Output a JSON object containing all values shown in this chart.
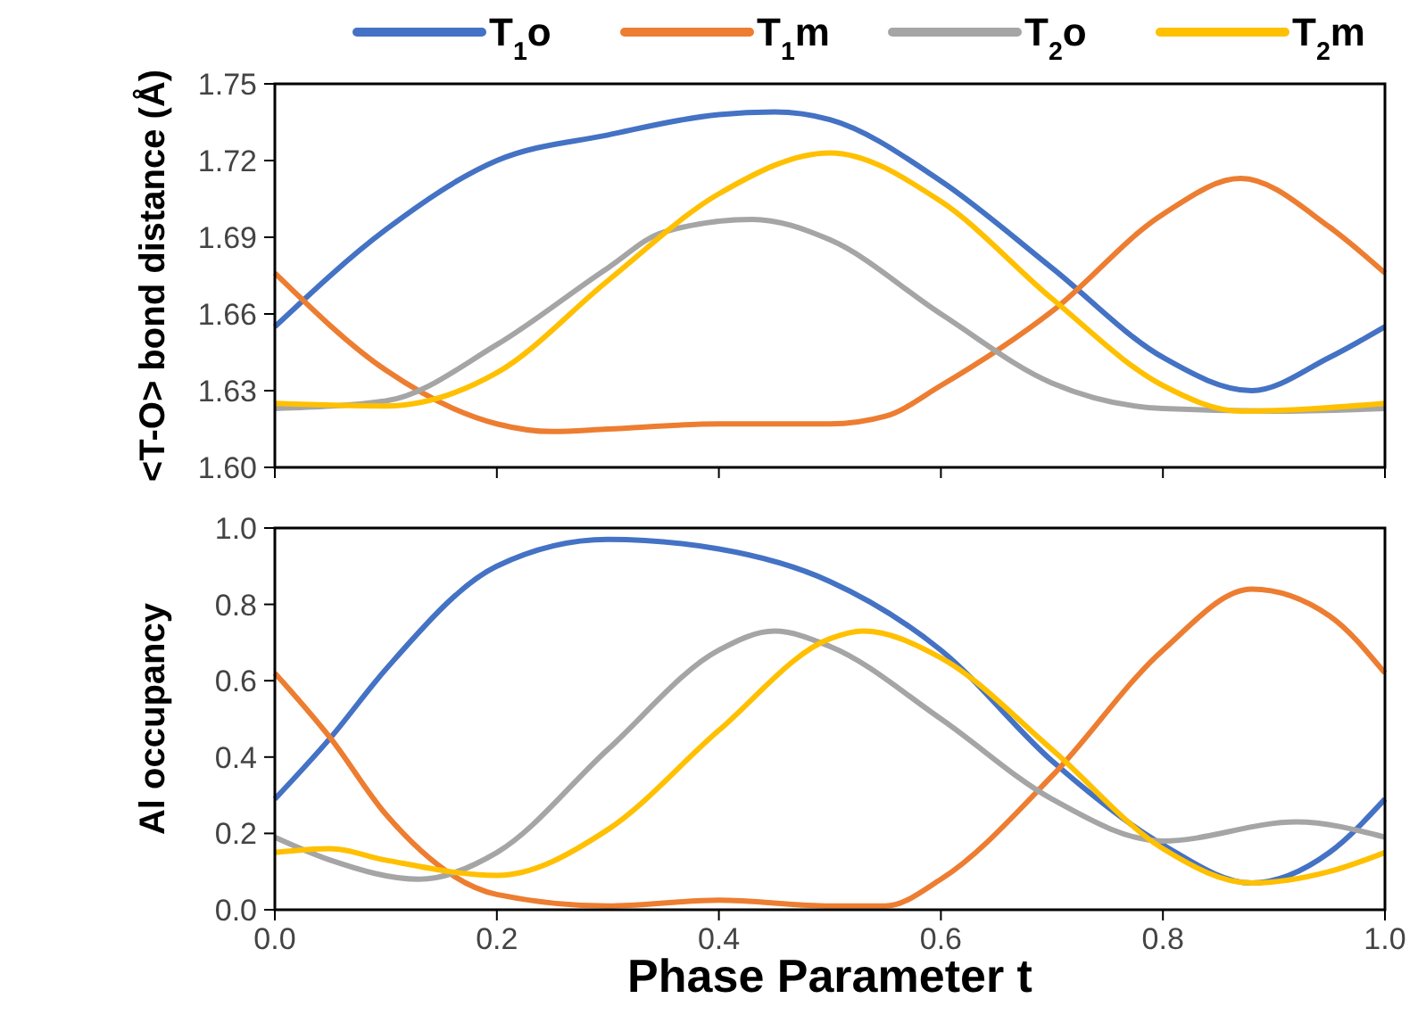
{
  "chart_data": [
    {
      "type": "line",
      "ylabel": "<T-O> bond distance (Å)",
      "legend": "top",
      "tick_labels": "y",
      "grid": false,
      "marker": "none",
      "line_style": "solid",
      "xlim": [
        0,
        1
      ],
      "xticks": [
        0,
        0.2,
        0.4,
        0.6,
        0.8,
        1
      ],
      "ylim": [
        1.6,
        1.75
      ],
      "yticks": [
        {
          "value": 1.6,
          "label": "1.60"
        },
        {
          "value": 1.63,
          "label": "1.63"
        },
        {
          "value": 1.66,
          "label": "1.66"
        },
        {
          "value": 1.69,
          "label": "1.69"
        },
        {
          "value": 1.72,
          "label": "1.72"
        },
        {
          "value": 1.75,
          "label": "1.75"
        }
      ],
      "series": [
        {
          "name": "T$_{1}$o",
          "color": "#4472c4",
          "x": [
            0,
            0.1,
            0.2,
            0.3,
            0.4,
            0.45,
            0.5,
            0.6,
            0.7,
            0.8,
            0.88,
            0.95,
            1
          ],
          "values": [
            1.655,
            1.693,
            1.72,
            1.73,
            1.738,
            1.739,
            1.736,
            1.712,
            1.678,
            1.643,
            1.63,
            1.643,
            1.655
          ]
        },
        {
          "name": "T$_{1}$m",
          "color": "#ed7d31",
          "x": [
            0,
            0.1,
            0.2,
            0.25,
            0.3,
            0.4,
            0.5,
            0.55,
            0.6,
            0.7,
            0.8,
            0.87,
            0.95,
            1
          ],
          "values": [
            1.676,
            1.638,
            1.617,
            1.614,
            1.615,
            1.617,
            1.617,
            1.62,
            1.632,
            1.661,
            1.699,
            1.713,
            1.694,
            1.676
          ]
        },
        {
          "name": "T$_{2}$o",
          "color": "#a5a5a5",
          "x": [
            0,
            0.1,
            0.2,
            0.3,
            0.35,
            0.43,
            0.5,
            0.6,
            0.7,
            0.8,
            0.9,
            1
          ],
          "values": [
            1.623,
            1.626,
            1.648,
            1.678,
            1.692,
            1.697,
            1.689,
            1.66,
            1.633,
            1.623,
            1.622,
            1.623
          ]
        },
        {
          "name": "T$_{2}$m",
          "color": "#ffc000",
          "x": [
            0,
            0.1,
            0.2,
            0.3,
            0.4,
            0.5,
            0.6,
            0.7,
            0.8,
            0.87,
            1
          ],
          "values": [
            1.625,
            1.624,
            1.637,
            1.673,
            1.707,
            1.723,
            1.704,
            1.666,
            1.632,
            1.622,
            1.625
          ]
        }
      ]
    },
    {
      "type": "line",
      "ylabel": "Al occupancy",
      "xlabel": "Phase Parameter t",
      "grid": false,
      "marker": "none",
      "line_style": "solid",
      "xlim": [
        0,
        1
      ],
      "xticks": [
        {
          "value": 0,
          "label": "0.0"
        },
        {
          "value": 0.2,
          "label": "0.2"
        },
        {
          "value": 0.4,
          "label": "0.4"
        },
        {
          "value": 0.6,
          "label": "0.6"
        },
        {
          "value": 0.8,
          "label": "0.8"
        },
        {
          "value": 1,
          "label": "1.0"
        }
      ],
      "ylim": [
        0,
        1
      ],
      "yticks": [
        {
          "value": 0,
          "label": "0.0"
        },
        {
          "value": 0.2,
          "label": "0.2"
        },
        {
          "value": 0.4,
          "label": "0.4"
        },
        {
          "value": 0.6,
          "label": "0.6"
        },
        {
          "value": 0.8,
          "label": "0.8"
        },
        {
          "value": 1,
          "label": "1.0"
        }
      ],
      "series": [
        {
          "color": "#4472c4",
          "x": [
            0,
            0.05,
            0.1,
            0.2,
            0.3,
            0.4,
            0.5,
            0.6,
            0.7,
            0.8,
            0.88,
            0.95,
            1
          ],
          "values": [
            0.29,
            0.45,
            0.63,
            0.9,
            0.97,
            0.945,
            0.86,
            0.68,
            0.39,
            0.17,
            0.07,
            0.15,
            0.29
          ]
        },
        {
          "color": "#ed7d31",
          "x": [
            0,
            0.05,
            0.1,
            0.2,
            0.3,
            0.4,
            0.5,
            0.55,
            0.6,
            0.7,
            0.8,
            0.88,
            0.95,
            1
          ],
          "values": [
            0.62,
            0.45,
            0.25,
            0.04,
            0.01,
            0.025,
            0.01,
            0.01,
            0.08,
            0.35,
            0.68,
            0.84,
            0.77,
            0.62
          ]
        },
        {
          "color": "#a5a5a5",
          "x": [
            0,
            0.05,
            0.13,
            0.2,
            0.3,
            0.4,
            0.45,
            0.5,
            0.6,
            0.7,
            0.8,
            0.92,
            1
          ],
          "values": [
            0.19,
            0.13,
            0.08,
            0.15,
            0.42,
            0.68,
            0.73,
            0.69,
            0.5,
            0.29,
            0.18,
            0.23,
            0.19
          ]
        },
        {
          "color": "#ffc000",
          "x": [
            0,
            0.05,
            0.1,
            0.2,
            0.3,
            0.4,
            0.5,
            0.53,
            0.6,
            0.7,
            0.8,
            0.88,
            0.95,
            1
          ],
          "values": [
            0.15,
            0.16,
            0.13,
            0.09,
            0.21,
            0.47,
            0.71,
            0.73,
            0.66,
            0.42,
            0.16,
            0.07,
            0.1,
            0.15
          ]
        }
      ]
    }
  ]
}
